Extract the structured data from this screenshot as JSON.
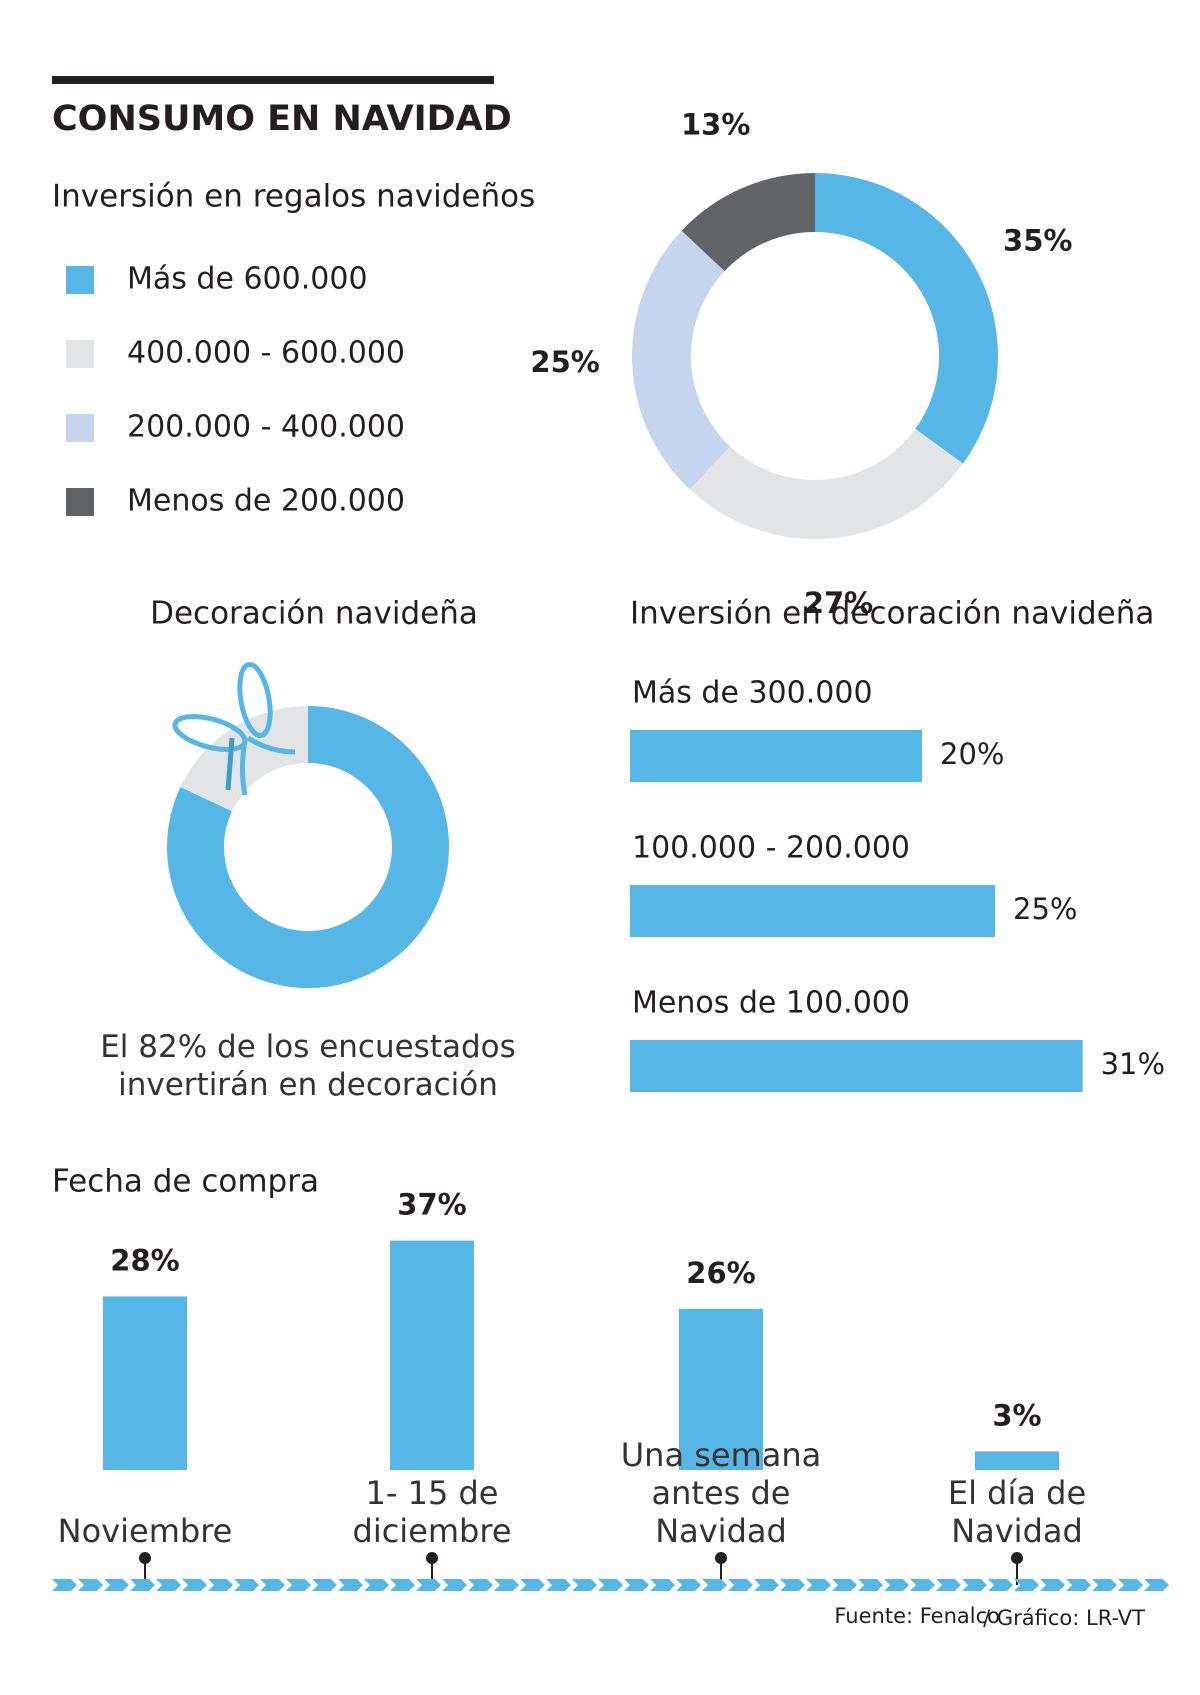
{
  "header": {
    "title": "CONSUMO EN NAVIDAD"
  },
  "chart_data": [
    {
      "type": "donut",
      "title": "Inversión en regalos navideños",
      "categories": [
        "Más de 600.000",
        "400.000 - 600.000",
        "200.000 - 400.000",
        "Menos de 200.000"
      ],
      "values": [
        35,
        27,
        25,
        13
      ],
      "value_labels": [
        "35%",
        "27%",
        "25%",
        "13%"
      ],
      "colors": [
        "#56b7e6",
        "#e3e4e5",
        "#c6d5ee",
        "#626366"
      ],
      "legend": "left"
    },
    {
      "type": "donut",
      "title": "Decoración navideña",
      "values": [
        82,
        18
      ],
      "colors": [
        "#56b7e6",
        "#e3e4e5"
      ],
      "annotation": "El 82% de los encuestados invertirán en decoración"
    },
    {
      "type": "hbar",
      "title": "Inversión en decoración navideña",
      "categories": [
        "Más de 300.000",
        "100.000 - 200.000",
        "Menos de 100.000"
      ],
      "values": [
        20,
        25,
        31
      ],
      "value_labels": [
        "20%",
        "25%",
        "31%"
      ],
      "color": "#56b7e6"
    },
    {
      "type": "bar",
      "title": "Fecha de compra",
      "categories": [
        "Noviembre",
        "1- 15 de diciembre",
        "Una semana antes de Navidad",
        "El día de Navidad"
      ],
      "values": [
        28,
        37,
        26,
        3
      ],
      "value_labels": [
        "28%",
        "37%",
        "26%",
        "3%"
      ],
      "color": "#56b7e6"
    }
  ],
  "footer": {
    "source": "Fuente: Fenalco",
    "credit": "/ Gráfico: LR-VT"
  }
}
